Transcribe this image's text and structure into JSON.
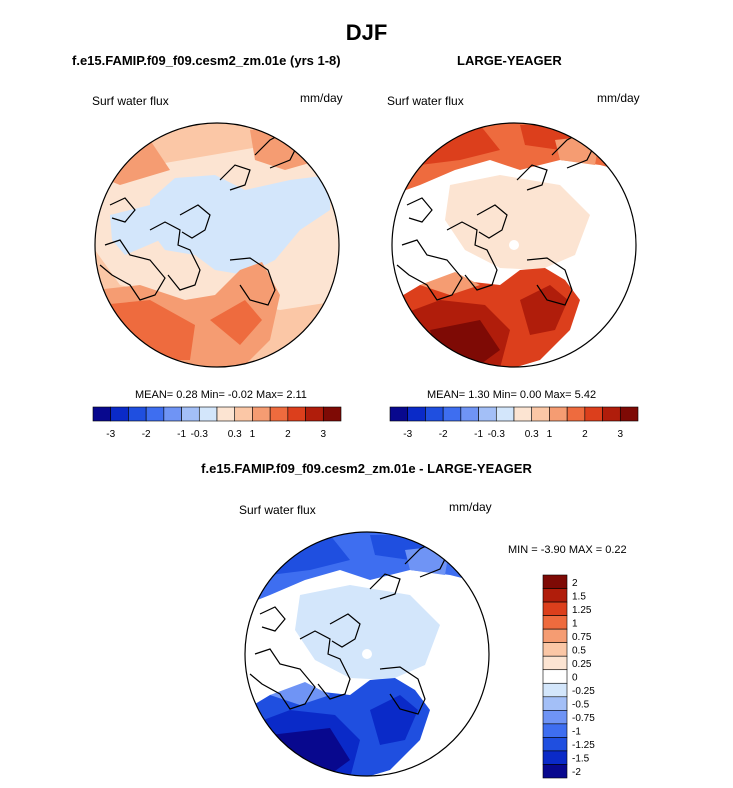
{
  "figure": {
    "main_title": "DJF"
  },
  "panels": [
    {
      "title": "f.e15.FAMIP.f09_f09.cesm2_zm.01e (yrs 1-8)",
      "variable": "Surf water flux",
      "units": "mm/day",
      "stats": "MEAN=  0.28  Min=  -0.02  Max=   2.11"
    },
    {
      "title": "LARGE-YEAGER",
      "variable": "Surf water flux",
      "units": "mm/day",
      "stats": "MEAN=  1.30  Min=  0.00  Max=   5.42"
    },
    {
      "title": "f.e15.FAMIP.f09_f09.cesm2_zm.01e - LARGE-YEAGER",
      "variable": "Surf water flux",
      "units": "mm/day",
      "stats": "MIN =  -3.90 MAX =    0.22"
    }
  ],
  "colorbar_top": {
    "colors": [
      "#08088e",
      "#0a2ac8",
      "#1f4fe0",
      "#3e6ef0",
      "#6f94f5",
      "#a3bff7",
      "#d3e6fb",
      "#fce4d2",
      "#fbc7a6",
      "#f59c72",
      "#ee6b3e",
      "#dc3f1c",
      "#b01d0b",
      "#7e0a05"
    ],
    "tick_labels": [
      "-3",
      "-2",
      "-1",
      "-0.3",
      "0.3",
      "1",
      "2",
      "3"
    ]
  },
  "colorbar_diff": {
    "colors": [
      "#08088e",
      "#0a2ac8",
      "#1f4fe0",
      "#3e6ef0",
      "#6f94f5",
      "#a3bff7",
      "#d3e6fb",
      "#ffffff",
      "#fce4d2",
      "#fbc7a6",
      "#f59c72",
      "#ee6b3e",
      "#dc3f1c",
      "#b01d0b",
      "#7e0a05"
    ],
    "tick_labels": [
      "2",
      "1.5",
      "1.25",
      "1",
      "0.75",
      "0.5",
      "0.25",
      "0",
      "-0.25",
      "-0.5",
      "-0.75",
      "-1",
      "-1.25",
      "-1.5",
      "-2"
    ]
  },
  "chart_data": [
    {
      "type": "heatmap",
      "projection": "north-polar stereographic",
      "title": "f.e15.FAMIP.f09_f09.cesm2_zm.01e (yrs 1-8)",
      "variable": "Surf water flux",
      "units": "mm/day",
      "mean": 0.28,
      "min": -0.02,
      "max": 2.11,
      "levels": [
        -3,
        -2.5,
        -2,
        -1.5,
        -1,
        -0.5,
        -0.3,
        0,
        0.3,
        0.5,
        1,
        1.5,
        2,
        2.5,
        3
      ]
    },
    {
      "type": "heatmap",
      "projection": "north-polar stereographic",
      "title": "LARGE-YEAGER",
      "variable": "Surf water flux",
      "units": "mm/day",
      "mean": 1.3,
      "min": 0.0,
      "max": 5.42,
      "levels": [
        -3,
        -2.5,
        -2,
        -1.5,
        -1,
        -0.5,
        -0.3,
        0,
        0.3,
        0.5,
        1,
        1.5,
        2,
        2.5,
        3
      ]
    },
    {
      "type": "heatmap",
      "projection": "north-polar stereographic",
      "title": "f.e15.FAMIP.f09_f09.cesm2_zm.01e - LARGE-YEAGER",
      "variable": "Surf water flux",
      "units": "mm/day",
      "min": -3.9,
      "max": 0.22,
      "levels": [
        -2,
        -1.5,
        -1.25,
        -1,
        -0.75,
        -0.5,
        -0.25,
        0,
        0.25,
        0.5,
        0.75,
        1,
        1.25,
        1.5,
        2
      ]
    }
  ]
}
